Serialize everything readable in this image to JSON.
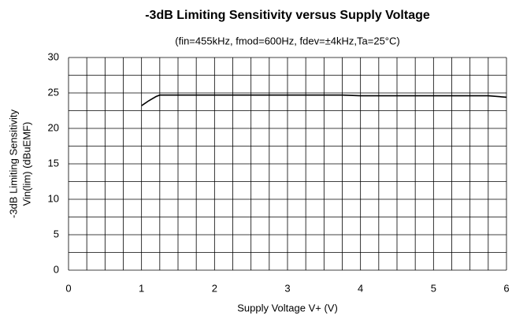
{
  "chart_data": {
    "type": "line",
    "title": "-3dB Limiting Sensitivity versus Supply Voltage",
    "subtitle": "(fin=455kHz, fmod=600Hz, fdev=±4kHz,Ta=25°C)",
    "xlabel": "Supply Voltage V+ (V)",
    "ylabel": [
      "-3dB Limiting Sensitivity",
      "Vin(lim) (dBuEMF)"
    ],
    "xlim": [
      0,
      6
    ],
    "ylim": [
      0,
      30
    ],
    "xticks": [
      0,
      1,
      2,
      3,
      4,
      5,
      6
    ],
    "yticks": [
      0,
      5,
      10,
      15,
      20,
      25,
      30
    ],
    "xminorticks": [
      0.25,
      0.5,
      0.75,
      1.25,
      1.5,
      1.75,
      2.25,
      2.5,
      2.75,
      3.25,
      3.5,
      3.75,
      4.25,
      4.5,
      4.75,
      5.25,
      5.5,
      5.75
    ],
    "yminorticks": [
      2.5,
      7.5,
      12.5,
      17.5,
      22.5,
      27.5
    ],
    "grid": true,
    "series": [
      {
        "color": "#000000",
        "x": [
          1,
          1.1,
          1.2,
          1.25,
          2,
          3,
          3.75,
          4,
          5,
          5.75,
          6
        ],
        "values": [
          23.2,
          23.9,
          24.5,
          24.7,
          24.7,
          24.7,
          24.7,
          24.6,
          24.6,
          24.6,
          24.4
        ]
      }
    ]
  }
}
